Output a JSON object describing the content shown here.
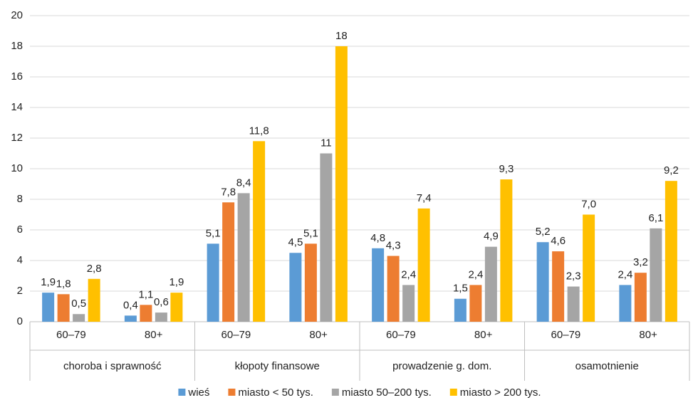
{
  "chart_data": {
    "type": "bar",
    "categories": [
      "60–79",
      "80+",
      "60–79",
      "80+",
      "60–79",
      "80+",
      "60–79",
      "80+"
    ],
    "category_groups": [
      "choroba i sprawność",
      "kłopoty finansowe",
      "prowadzenie g. dom.",
      "osamotnienie"
    ],
    "series": [
      {
        "name": "wieś",
        "color": "#5b9bd5",
        "values": [
          1.9,
          0.4,
          5.1,
          4.5,
          4.8,
          1.5,
          5.2,
          2.4
        ],
        "value_labels": [
          "1,9",
          "0,4",
          "5,1",
          "4,5",
          "4,8",
          "1,5",
          "5,2",
          "2,4"
        ]
      },
      {
        "name": "miasto < 50 tys.",
        "color": "#ed7d31",
        "values": [
          1.8,
          1.1,
          7.8,
          5.1,
          4.3,
          2.4,
          4.6,
          3.2
        ],
        "value_labels": [
          "1,8",
          "1,1",
          "7,8",
          "5,1",
          "4,3",
          "2,4",
          "4,6",
          "3,2"
        ]
      },
      {
        "name": "miasto 50–200 tys.",
        "color": "#a5a5a5",
        "values": [
          0.5,
          0.6,
          8.4,
          11,
          2.4,
          4.9,
          2.3,
          6.1
        ],
        "value_labels": [
          "0,5",
          "0,6",
          "8,4",
          "11",
          "2,4",
          "4,9",
          "2,3",
          "6,1"
        ]
      },
      {
        "name": "miasto > 200 tys.",
        "color": "#ffc000",
        "values": [
          2.8,
          1.9,
          11.8,
          18,
          7.4,
          9.3,
          7.0,
          9.2
        ],
        "value_labels": [
          "2,8",
          "1,9",
          "11,8",
          "18",
          "7,4",
          "9,3",
          "7,0",
          "9,2"
        ]
      }
    ],
    "ylim": [
      0,
      20
    ],
    "yticks": [
      0,
      2,
      4,
      6,
      8,
      10,
      12,
      14,
      16,
      18,
      20
    ],
    "grid": true
  }
}
